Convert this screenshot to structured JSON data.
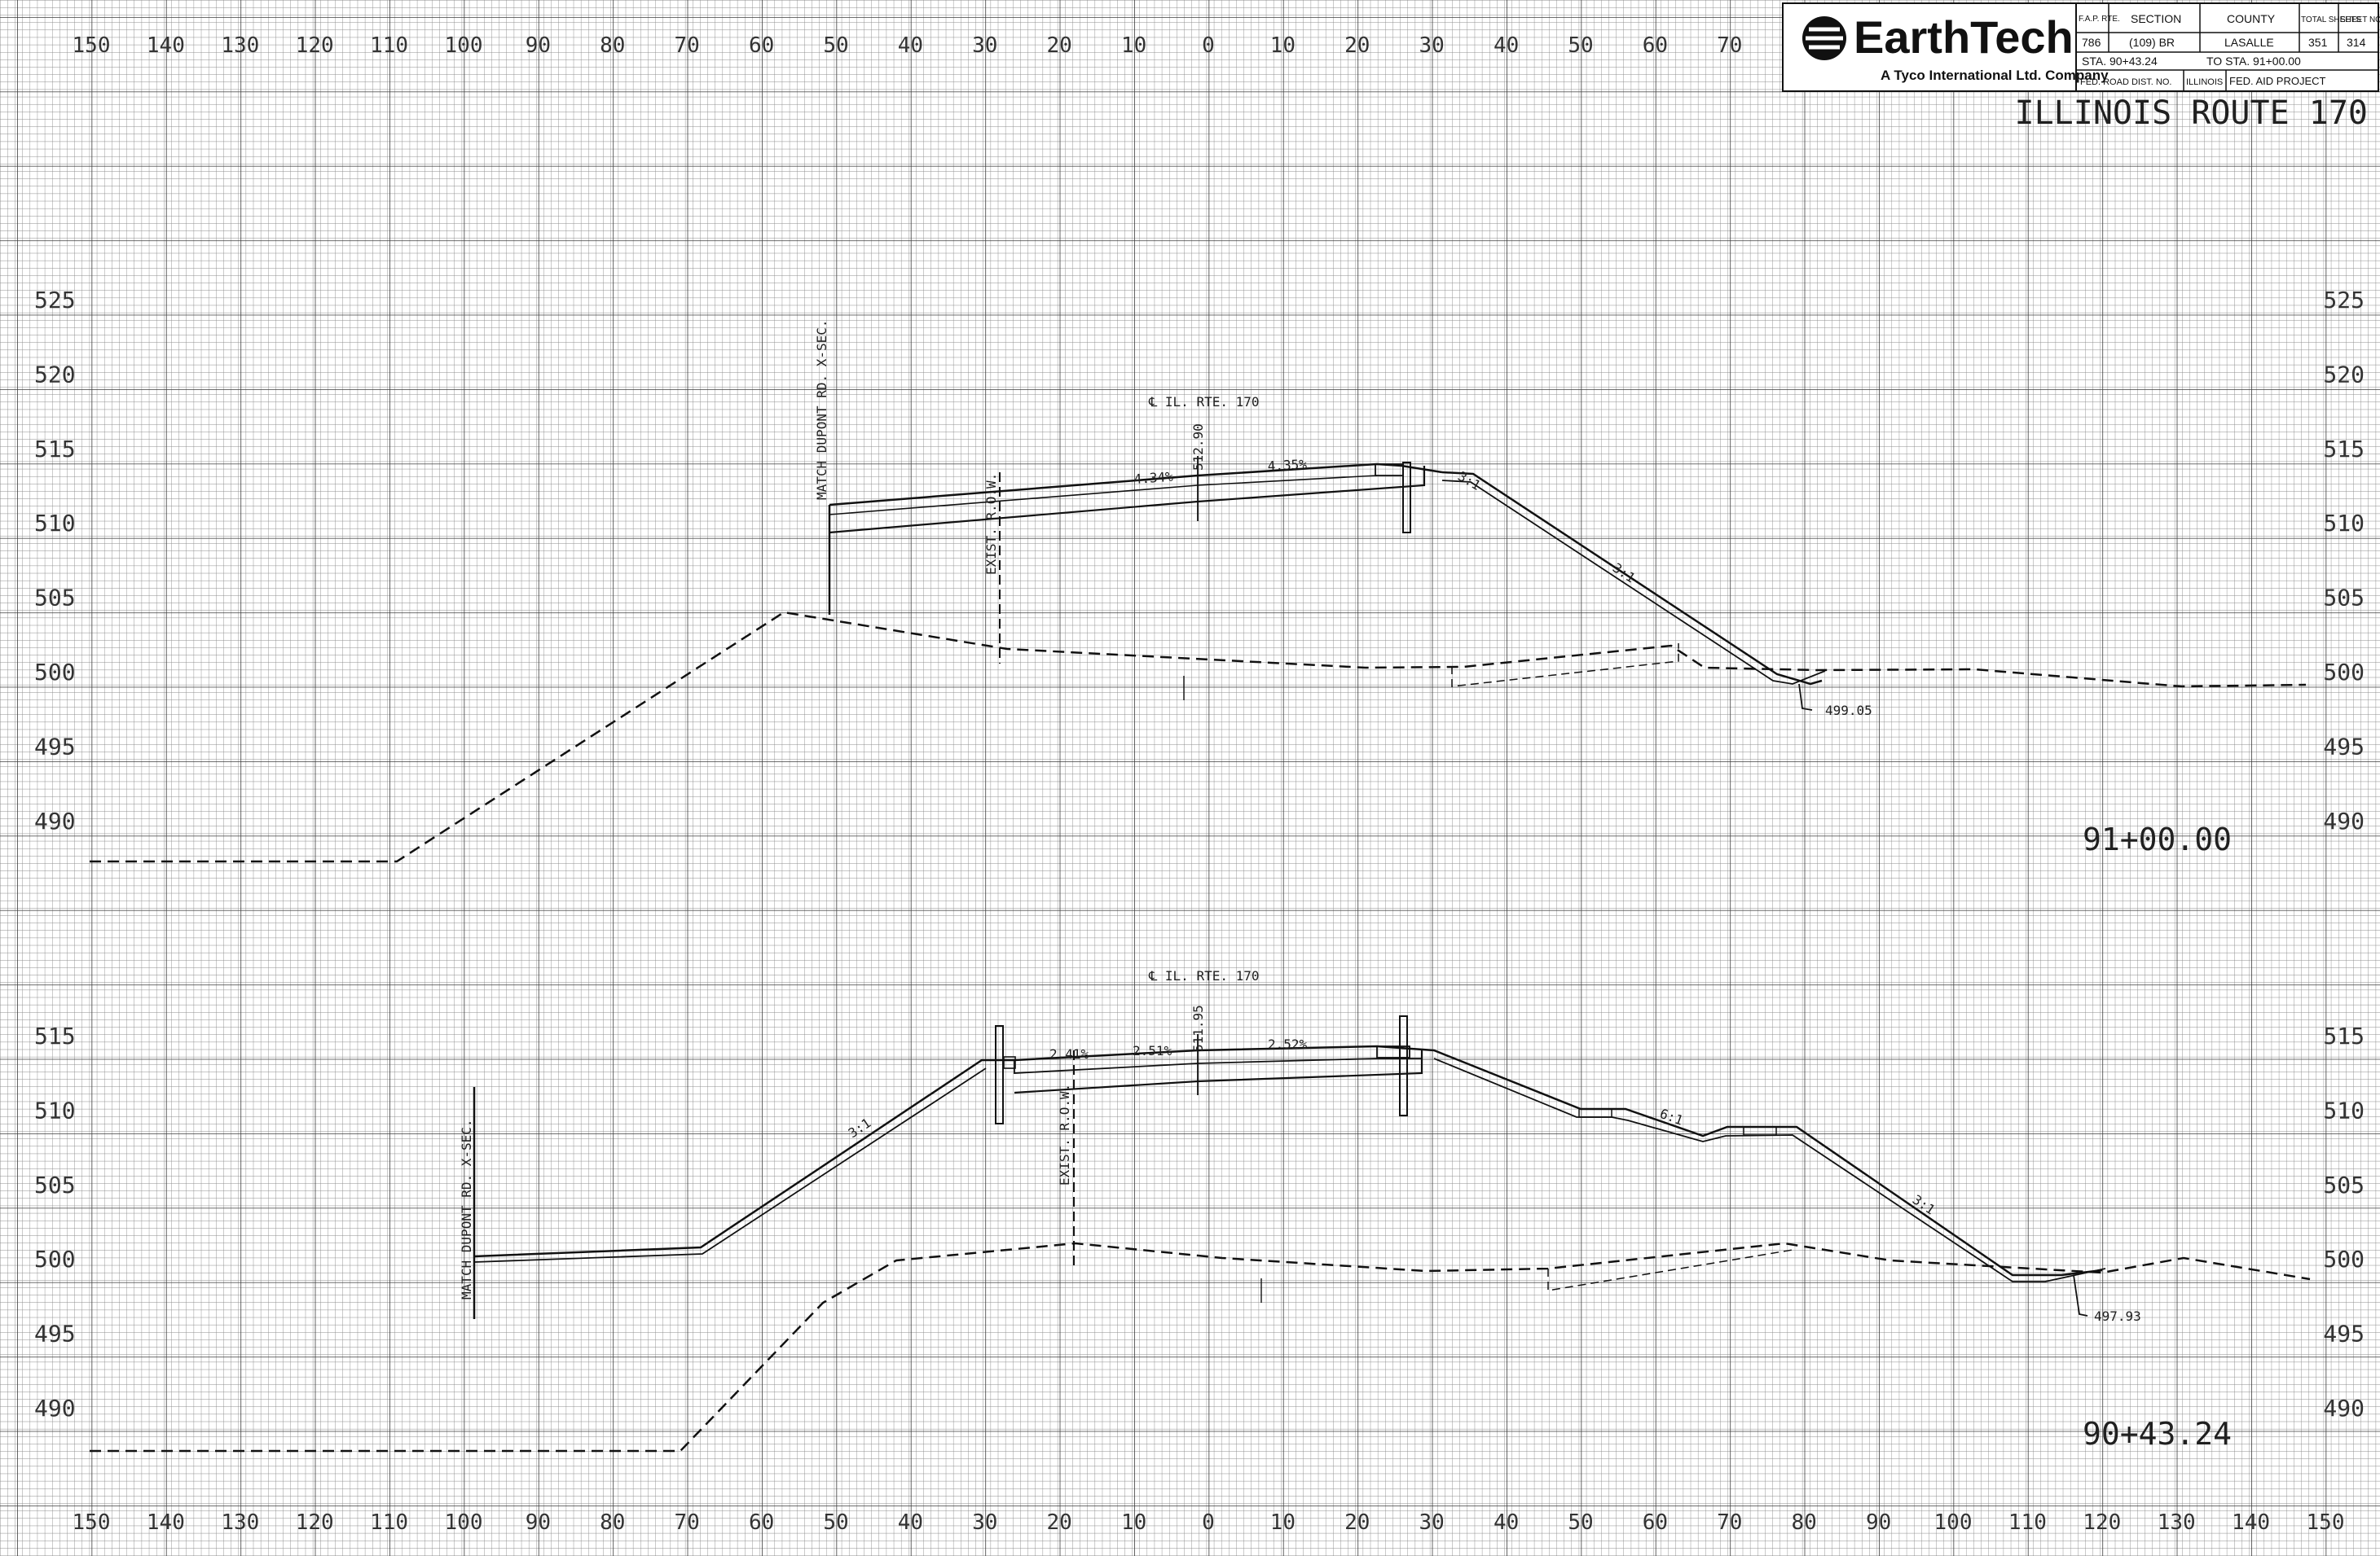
{
  "title_block": {
    "company": "EarthTech",
    "tagline": "A Tyco International Ltd. Company",
    "rte_header": "F.A.P. RTE.",
    "section_header": "SECTION",
    "county_header": "COUNTY",
    "total_sheets_header": "TOTAL SHEETS",
    "sheet_no_header": "SHEET NO.",
    "rte": "786",
    "section": "(109) BR",
    "county": "LASALLE",
    "total_sheets": "351",
    "sheet_no": "314",
    "sta_from": "STA. 90+43.24",
    "sta_to": "TO STA. 91+00.00",
    "fed_road_dist": "FED. ROAD DIST. NO.",
    "state": "ILLINOIS",
    "fed_aid": "FED. AID PROJECT"
  },
  "route_title": "ILLINOIS ROUTE 170",
  "offset_ticks_top": [
    "150",
    "140",
    "130",
    "120",
    "110",
    "100",
    "90",
    "80",
    "70",
    "60",
    "50",
    "40",
    "30",
    "20",
    "10",
    "0",
    "10",
    "20",
    "30",
    "40",
    "50",
    "60",
    "70"
  ],
  "offset_ticks_bottom": [
    "150",
    "140",
    "130",
    "120",
    "110",
    "100",
    "90",
    "80",
    "70",
    "60",
    "50",
    "40",
    "30",
    "20",
    "10",
    "0",
    "10",
    "20",
    "30",
    "40",
    "50",
    "60",
    "70",
    "80",
    "90",
    "100",
    "110",
    "120",
    "130",
    "140",
    "150"
  ],
  "sections": [
    {
      "station": "91+00.00",
      "elev_left": [
        "525",
        "520",
        "515",
        "510",
        "505",
        "500",
        "495",
        "490"
      ],
      "elev_right": [
        "525",
        "520",
        "515",
        "510",
        "505",
        "500",
        "495",
        "490"
      ],
      "centerline_label": "℄ IL. RTE. 170",
      "centerline_elev": "512.90",
      "slope_left": "4.34%",
      "slope_right": "4.35%",
      "side_slope_1": "3:1",
      "side_slope_2": "3:1",
      "match_label": "MATCH DUPONT RD. X-SEC.",
      "row_label": "EXIST. R.O.W.",
      "ditch_elev": "499.05"
    },
    {
      "station": "90+43.24",
      "elev_left": [
        "515",
        "510",
        "505",
        "500",
        "495",
        "490"
      ],
      "elev_right": [
        "515",
        "510",
        "505",
        "500",
        "495",
        "490"
      ],
      "centerline_label": "℄ IL. RTE. 170",
      "centerline_elev": "511.95",
      "slope_1": "2.41%",
      "slope_2": "2.51%",
      "slope_3": "2.52%",
      "side_slope_left": "3:1",
      "side_slope_mid": "6:1",
      "side_slope_right": "3:1",
      "match_label": "MATCH DUPONT RD. X-SEC.",
      "row_label": "EXIST. R.O.W.",
      "ditch_elev": "497.93"
    }
  ]
}
